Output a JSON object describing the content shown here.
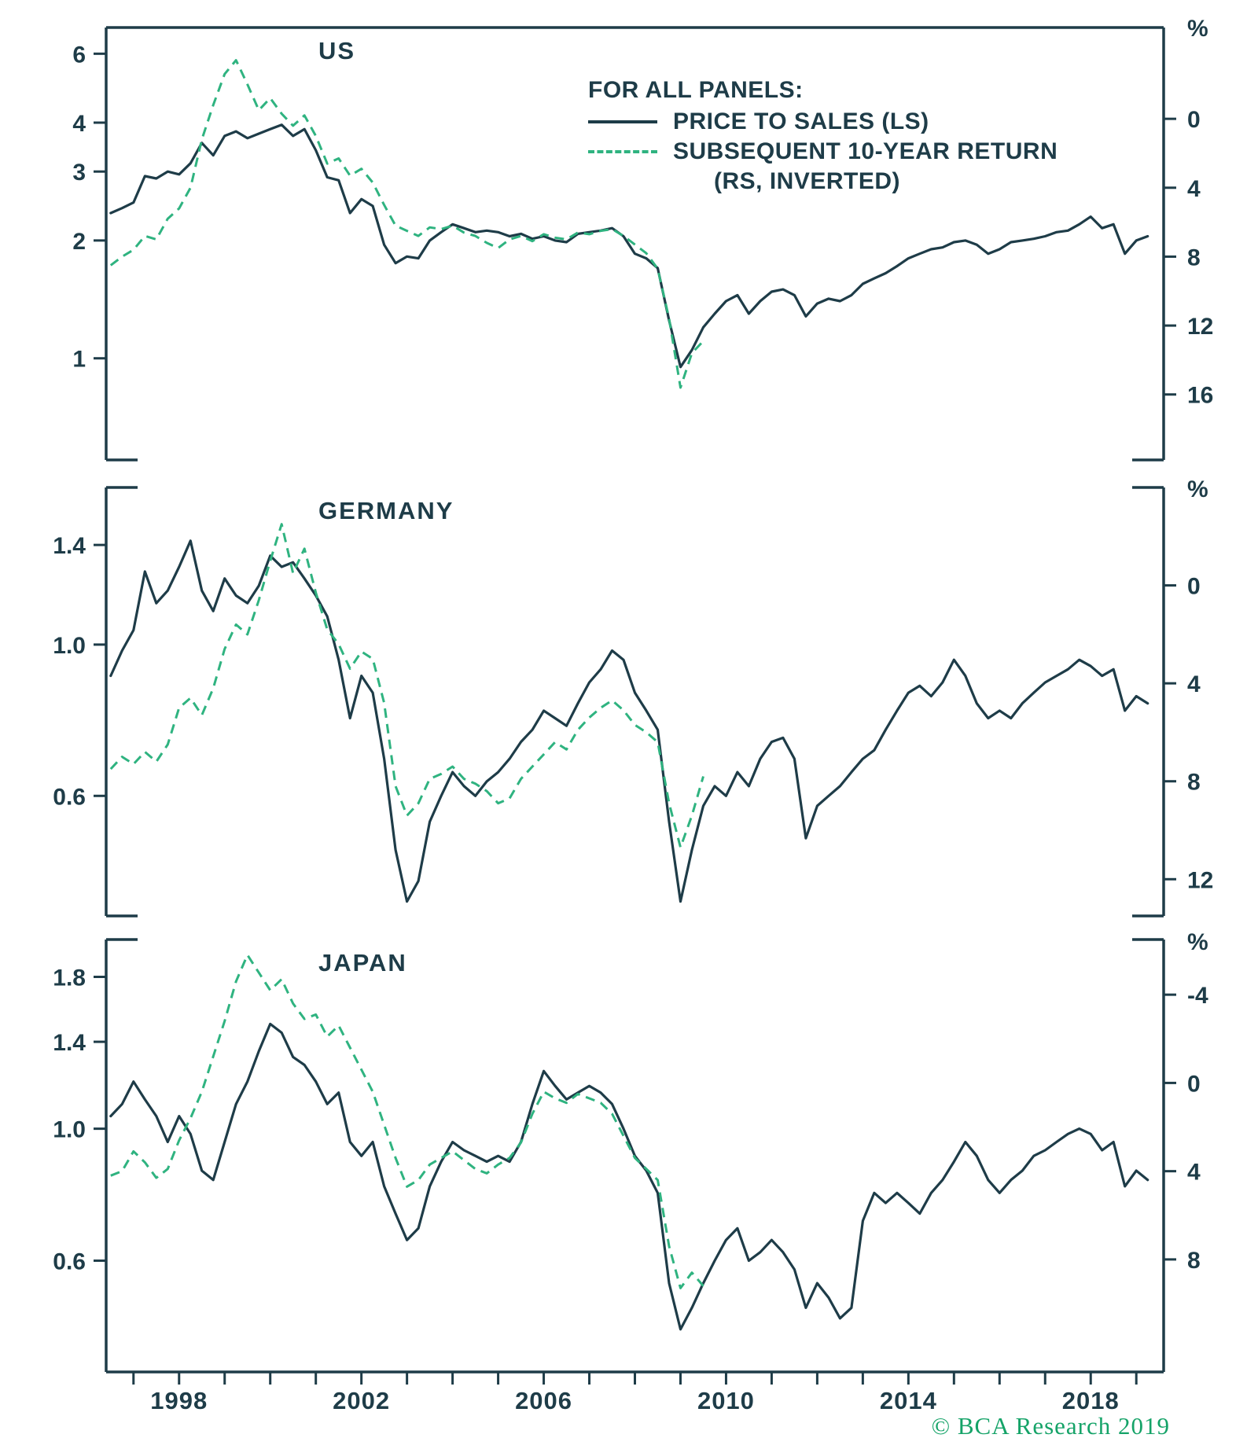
{
  "colors": {
    "navy": "#1e3c48",
    "green": "#2fb380",
    "copy_green": "#15a368",
    "background": "#ffffff"
  },
  "branding": {
    "copyright_text": "© BCA Research 2019"
  },
  "legend": {
    "header": "FOR ALL PANELS:",
    "series1_label": "PRICE TO SALES (LS)",
    "series2_label_line1": "SUBSEQUENT 10-YEAR RETURN",
    "series2_label_line2": "(RS, INVERTED)"
  },
  "x_axis": {
    "x_min": 1996.4,
    "x_max": 2019.6,
    "tick_years": [
      1997,
      1998,
      1999,
      2000,
      2001,
      2002,
      2003,
      2004,
      2005,
      2006,
      2007,
      2008,
      2009,
      2010,
      2011,
      2012,
      2013,
      2014,
      2015,
      2016,
      2017,
      2018,
      2019
    ],
    "label_years": [
      1998,
      2002,
      2006,
      2010,
      2014,
      2018
    ]
  },
  "chart_data": [
    {
      "type": "line",
      "title": "US",
      "left_axis": {
        "scale": "log",
        "min": 0.55,
        "max": 7.0,
        "ticks": [
          6,
          4,
          3,
          2,
          1
        ],
        "tick_labels": [
          "6",
          "4",
          "3",
          "2",
          "1"
        ]
      },
      "right_axis": {
        "unit": "%",
        "inverted": true,
        "min": -5.3,
        "max": 19.8,
        "ticks": [
          0,
          4,
          8,
          12,
          16
        ],
        "tick_labels": [
          "0",
          "4",
          "8",
          "12",
          "16"
        ]
      },
      "series": [
        {
          "name": "PRICE TO SALES (LS)",
          "axis": "left",
          "style": "solid",
          "x_start": 1996.5,
          "x_step": 0.25,
          "values": [
            2.35,
            2.42,
            2.5,
            2.92,
            2.88,
            3.0,
            2.95,
            3.15,
            3.55,
            3.3,
            3.7,
            3.8,
            3.65,
            3.75,
            3.85,
            3.95,
            3.7,
            3.85,
            3.4,
            2.9,
            2.85,
            2.35,
            2.55,
            2.45,
            1.95,
            1.75,
            1.82,
            1.8,
            2.0,
            2.1,
            2.2,
            2.15,
            2.1,
            2.12,
            2.1,
            2.05,
            2.08,
            2.02,
            2.05,
            2.0,
            1.98,
            2.08,
            2.1,
            2.12,
            2.15,
            2.05,
            1.85,
            1.8,
            1.7,
            1.25,
            0.95,
            1.05,
            1.2,
            1.3,
            1.4,
            1.45,
            1.3,
            1.4,
            1.48,
            1.5,
            1.45,
            1.28,
            1.38,
            1.42,
            1.4,
            1.45,
            1.55,
            1.6,
            1.65,
            1.72,
            1.8,
            1.85,
            1.9,
            1.92,
            1.98,
            2.0,
            1.95,
            1.85,
            1.9,
            1.98,
            2.0,
            2.02,
            2.05,
            2.1,
            2.12,
            2.2,
            2.3,
            2.15,
            2.2,
            1.85,
            2.0,
            2.05
          ]
        },
        {
          "name": "SUBSEQUENT 10-YEAR RETURN (RS, INVERTED)",
          "axis": "right",
          "style": "dashed",
          "x_start": 1996.5,
          "x_step": 0.25,
          "values": [
            8.5,
            8.0,
            7.6,
            6.8,
            7.0,
            5.8,
            5.2,
            4.0,
            1.2,
            -0.8,
            -2.6,
            -3.4,
            -2.0,
            -0.5,
            -1.2,
            -0.3,
            0.4,
            -0.2,
            1.0,
            2.6,
            2.3,
            3.3,
            2.9,
            3.7,
            5.0,
            6.2,
            6.5,
            6.8,
            6.3,
            6.4,
            6.2,
            6.6,
            6.8,
            7.2,
            7.5,
            7.0,
            6.8,
            7.1,
            6.7,
            6.9,
            7.0,
            6.6,
            6.7,
            6.5,
            6.4,
            6.8,
            7.3,
            7.8,
            8.7,
            11.6,
            15.6,
            13.6,
            12.9
          ]
        }
      ]
    },
    {
      "type": "line",
      "title": "GERMANY",
      "left_axis": {
        "scale": "log",
        "min": 0.4,
        "max": 1.7,
        "ticks": [
          1.4,
          1.0,
          0.6
        ],
        "tick_labels": [
          "1.4",
          "1.0",
          "0.6"
        ]
      },
      "right_axis": {
        "unit": "%",
        "inverted": true,
        "min": -4.0,
        "max": 13.5,
        "ticks": [
          0,
          4,
          8,
          12
        ],
        "tick_labels": [
          "0",
          "4",
          "8",
          "12"
        ]
      },
      "series": [
        {
          "name": "PRICE TO SALES (LS)",
          "axis": "left",
          "style": "solid",
          "x_start": 1996.5,
          "x_step": 0.25,
          "values": [
            0.9,
            0.98,
            1.05,
            1.28,
            1.15,
            1.2,
            1.3,
            1.42,
            1.2,
            1.12,
            1.25,
            1.18,
            1.15,
            1.22,
            1.35,
            1.3,
            1.32,
            1.25,
            1.18,
            1.1,
            0.95,
            0.78,
            0.9,
            0.85,
            0.68,
            0.5,
            0.42,
            0.45,
            0.55,
            0.6,
            0.65,
            0.62,
            0.6,
            0.63,
            0.65,
            0.68,
            0.72,
            0.75,
            0.8,
            0.78,
            0.76,
            0.82,
            0.88,
            0.92,
            0.98,
            0.95,
            0.85,
            0.8,
            0.75,
            0.55,
            0.42,
            0.5,
            0.58,
            0.62,
            0.6,
            0.65,
            0.62,
            0.68,
            0.72,
            0.73,
            0.68,
            0.52,
            0.58,
            0.6,
            0.62,
            0.65,
            0.68,
            0.7,
            0.75,
            0.8,
            0.85,
            0.87,
            0.84,
            0.88,
            0.95,
            0.9,
            0.82,
            0.78,
            0.8,
            0.78,
            0.82,
            0.85,
            0.88,
            0.9,
            0.92,
            0.95,
            0.93,
            0.9,
            0.92,
            0.8,
            0.84,
            0.82
          ]
        },
        {
          "name": "SUBSEQUENT 10-YEAR RETURN (RS, INVERTED)",
          "axis": "right",
          "style": "dashed",
          "x_start": 1996.5,
          "x_step": 0.25,
          "values": [
            7.5,
            7.0,
            7.3,
            6.8,
            7.2,
            6.5,
            5.0,
            4.6,
            5.3,
            4.2,
            2.6,
            1.6,
            2.0,
            0.6,
            -1.0,
            -2.5,
            -0.5,
            -1.5,
            0.3,
            1.8,
            2.4,
            3.4,
            2.7,
            3.0,
            4.8,
            8.2,
            9.4,
            8.9,
            7.9,
            7.7,
            7.4,
            7.9,
            8.1,
            8.4,
            8.9,
            8.7,
            7.9,
            7.4,
            6.9,
            6.4,
            6.7,
            5.9,
            5.4,
            5.0,
            4.7,
            5.1,
            5.7,
            6.0,
            6.4,
            8.9,
            10.7,
            9.4,
            7.8
          ]
        }
      ]
    },
    {
      "type": "line",
      "title": "JAPAN",
      "left_axis": {
        "scale": "log",
        "min": 0.39,
        "max": 2.08,
        "ticks": [
          1.8,
          1.4,
          1.0,
          0.6
        ],
        "tick_labels": [
          "1.8",
          "1.4",
          "1.0",
          "0.6"
        ]
      },
      "right_axis": {
        "unit": "%",
        "inverted": true,
        "min": -6.5,
        "max": 13.1,
        "ticks": [
          -4,
          0,
          4,
          8
        ],
        "tick_labels": [
          "-4",
          "0",
          "4",
          "8"
        ]
      },
      "series": [
        {
          "name": "PRICE TO SALES (LS)",
          "axis": "left",
          "style": "solid",
          "x_start": 1996.5,
          "x_step": 0.25,
          "values": [
            1.05,
            1.1,
            1.2,
            1.12,
            1.05,
            0.95,
            1.05,
            0.98,
            0.85,
            0.82,
            0.95,
            1.1,
            1.2,
            1.35,
            1.5,
            1.45,
            1.32,
            1.28,
            1.2,
            1.1,
            1.15,
            0.95,
            0.9,
            0.95,
            0.8,
            0.72,
            0.65,
            0.68,
            0.8,
            0.88,
            0.95,
            0.92,
            0.9,
            0.88,
            0.9,
            0.88,
            0.95,
            1.1,
            1.25,
            1.18,
            1.12,
            1.15,
            1.18,
            1.15,
            1.1,
            1.0,
            0.9,
            0.85,
            0.78,
            0.55,
            0.46,
            0.5,
            0.55,
            0.6,
            0.65,
            0.68,
            0.6,
            0.62,
            0.65,
            0.62,
            0.58,
            0.5,
            0.55,
            0.52,
            0.48,
            0.5,
            0.7,
            0.78,
            0.75,
            0.78,
            0.75,
            0.72,
            0.78,
            0.82,
            0.88,
            0.95,
            0.9,
            0.82,
            0.78,
            0.82,
            0.85,
            0.9,
            0.92,
            0.95,
            0.98,
            1.0,
            0.98,
            0.92,
            0.95,
            0.8,
            0.85,
            0.82
          ]
        },
        {
          "name": "SUBSEQUENT 10-YEAR RETURN (RS, INVERTED)",
          "axis": "right",
          "style": "dashed",
          "x_start": 1996.5,
          "x_step": 0.25,
          "values": [
            4.2,
            4.0,
            3.1,
            3.6,
            4.3,
            3.9,
            2.6,
            1.6,
            0.4,
            -1.2,
            -2.8,
            -4.6,
            -5.8,
            -5.0,
            -4.2,
            -4.7,
            -3.6,
            -2.9,
            -3.1,
            -2.1,
            -2.6,
            -1.6,
            -0.6,
            0.4,
            1.9,
            3.4,
            4.7,
            4.4,
            3.7,
            3.4,
            3.1,
            3.5,
            3.9,
            4.1,
            3.7,
            3.4,
            2.7,
            1.4,
            0.4,
            0.7,
            0.9,
            0.5,
            0.7,
            0.9,
            1.4,
            2.4,
            3.4,
            3.9,
            4.4,
            7.4,
            9.3,
            8.6,
            9.2
          ]
        }
      ]
    }
  ]
}
